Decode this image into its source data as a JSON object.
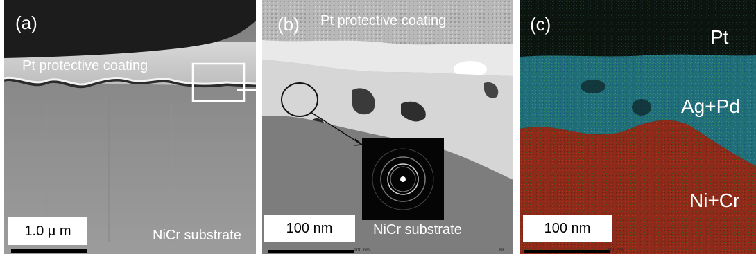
{
  "figure": {
    "panel_a": {
      "label": "(a)",
      "coating_label": "Pt protective coating",
      "substrate_label": "NiCr substrate",
      "scale_bar": "1.0 μ m"
    },
    "panel_b": {
      "label": "(b)",
      "coating_label": "Pt protective coating",
      "substrate_label": "NiCr substrate",
      "scale_bar": "100 nm",
      "bottom_bar_text": "100 nm",
      "corner_text": "BF"
    },
    "panel_c": {
      "label": "(c)",
      "element_pt": "Pt",
      "element_agpd": "Ag+Pd",
      "element_nicr": "Ni+Cr",
      "scale_bar": "100 nm",
      "bottom_bar_text": "100 nm"
    },
    "colors": {
      "pt_map": "#0c1410",
      "agpd_map": "#1f6e78",
      "nicr_map": "#8e2a1a",
      "coating_dark": "#1a1a1a",
      "substrate_gray": "#8a8a8a"
    }
  }
}
